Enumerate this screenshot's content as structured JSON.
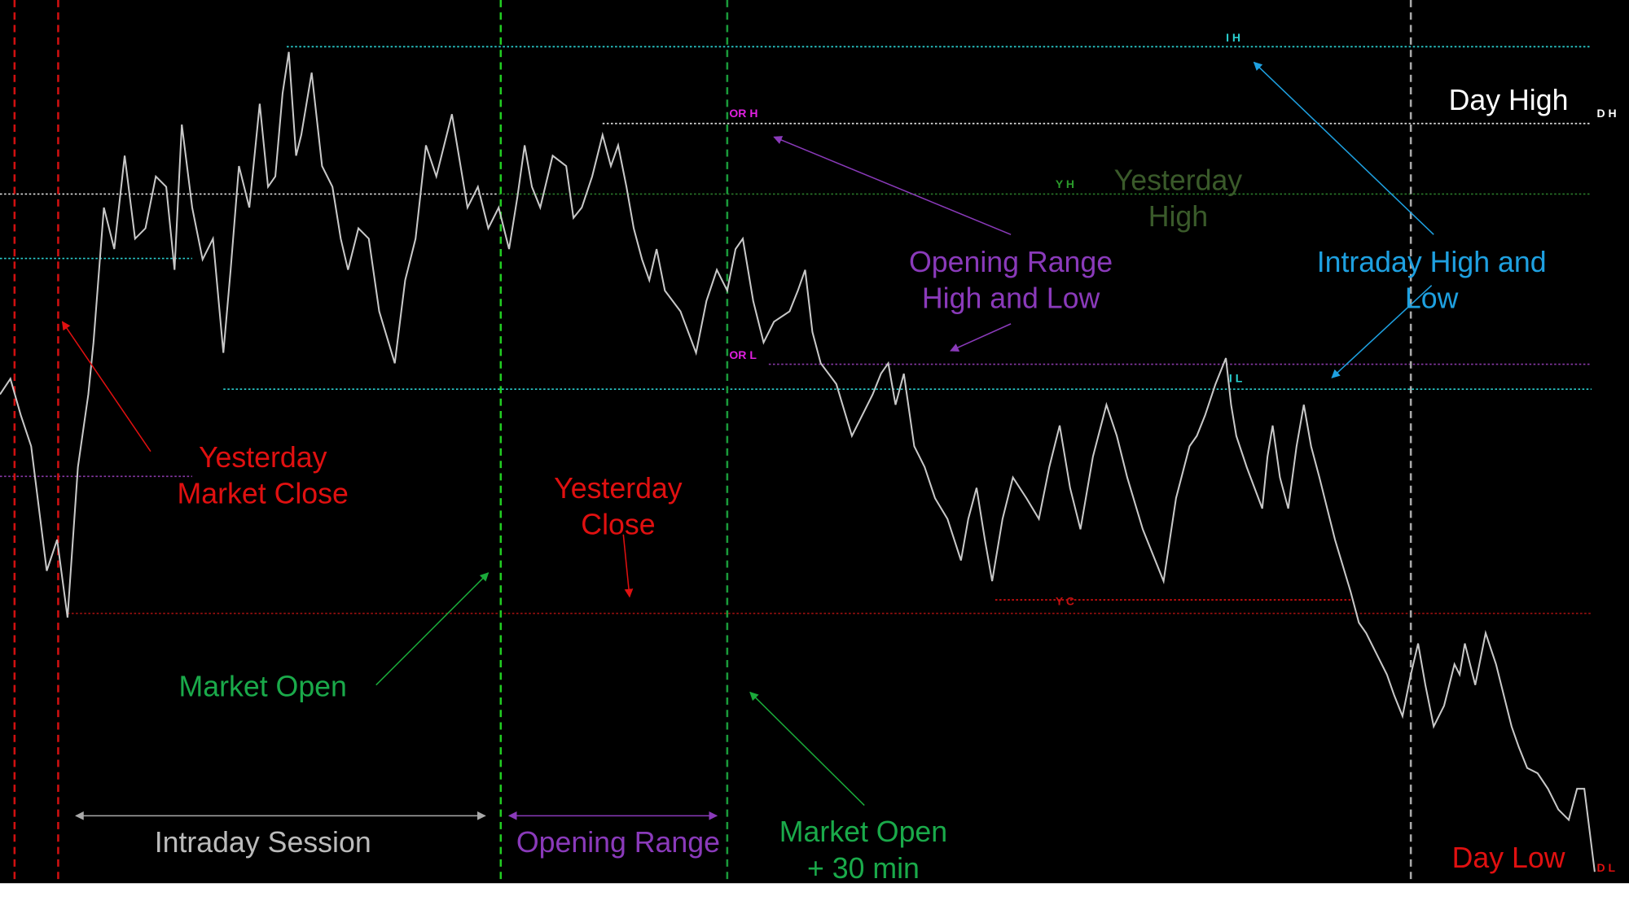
{
  "annotations": {
    "yesterday_market_close": [
      "Yesterday",
      "Market Close"
    ],
    "yesterday_close": [
      "Yesterday",
      "Close"
    ],
    "market_open": [
      "Market Open"
    ],
    "market_open_30": [
      "Market Open",
      "+ 30 min"
    ],
    "opening_range_high_low": [
      "Opening Range",
      "High and Low"
    ],
    "intraday_high_low": [
      "Intraday High and",
      "Low"
    ],
    "yesterday_high": [
      "Yesterday",
      "High"
    ],
    "day_high": [
      "Day High"
    ],
    "day_low": [
      "Day Low"
    ],
    "intraday_session": [
      "Intraday Session"
    ],
    "opening_range": [
      "Opening Range"
    ]
  },
  "level_labels": {
    "ih": "I H",
    "dh": "D H",
    "yh": "Y H",
    "orh": "OR H",
    "orl": "OR L",
    "il": "I L",
    "yc": "Y C",
    "dl": "D L"
  }
}
